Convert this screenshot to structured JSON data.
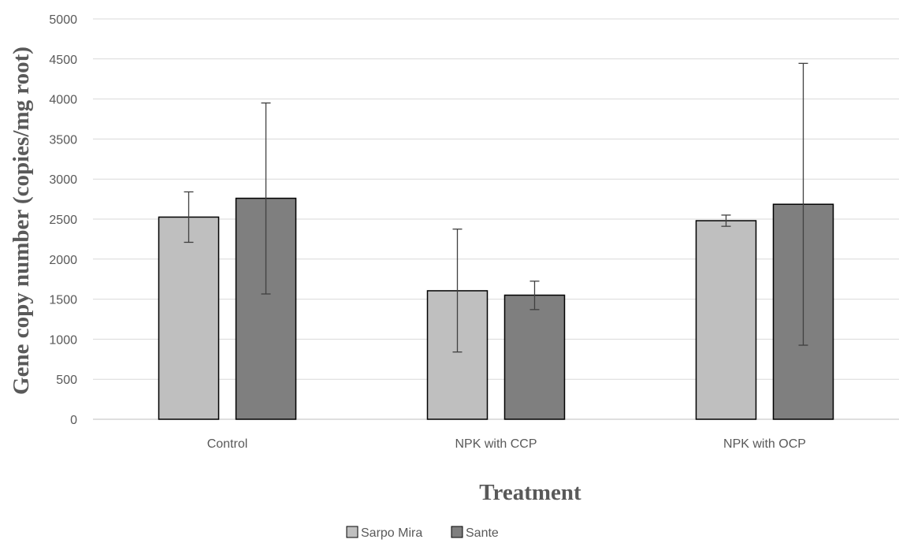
{
  "chart_data": {
    "type": "bar",
    "title": "",
    "xlabel": "Treatment",
    "ylabel": "Gene copy number (copies/mg root)",
    "categories": [
      "Control",
      "NPK with CCP",
      "NPK with OCP"
    ],
    "series": [
      {
        "name": "Sarpo Mira",
        "color": "#bfbfbf",
        "values": [
          2525,
          1605,
          2480
        ],
        "error_low": [
          2210,
          840,
          2410
        ],
        "error_high": [
          2840,
          2375,
          2550
        ]
      },
      {
        "name": "Sante",
        "color": "#7f7f7f",
        "values": [
          2760,
          1550,
          2685
        ],
        "error_low": [
          1565,
          1370,
          925
        ],
        "error_high": [
          3950,
          1725,
          4445
        ]
      }
    ],
    "ylim": [
      0,
      5000
    ],
    "yticks": [
      0,
      500,
      1000,
      1500,
      2000,
      2500,
      3000,
      3500,
      4000,
      4500,
      5000
    ],
    "grid": true,
    "legend_position": "bottom",
    "colors": {
      "gridline": "#d9d9d9",
      "axis": "#bfbfbf",
      "bar_border": "#000000",
      "error_bar": "#404040",
      "text": "#595959"
    }
  }
}
